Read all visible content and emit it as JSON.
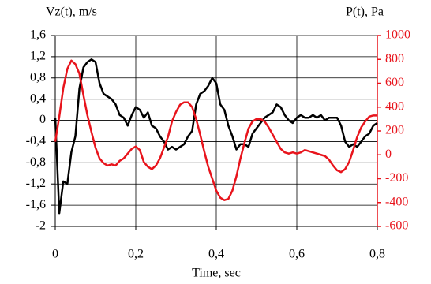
{
  "chart_data": {
    "type": "line",
    "ylabel": "Vz(t), m/s",
    "y2label": "P(t), Pa",
    "xlabel": "Time, sec",
    "grid": true,
    "xlim": [
      0,
      0.8
    ],
    "xticks": [
      0,
      {
        "value": 0.2,
        "label": "0,2"
      },
      {
        "value": 0.4,
        "label": "0,4"
      },
      {
        "value": 0.6,
        "label": "0,6"
      },
      {
        "value": 0.8,
        "label": "0,8"
      }
    ],
    "ylim": [
      -2,
      1.6
    ],
    "yticks": [
      {
        "value": 1.6,
        "label": "1,6"
      },
      {
        "value": 1.2,
        "label": "1,2"
      },
      {
        "value": 0.8,
        "label": "0,8"
      },
      {
        "value": 0.4,
        "label": "0,4"
      },
      0,
      {
        "value": -0.4,
        "label": "-0,4"
      },
      {
        "value": -0.8,
        "label": "-0,8"
      },
      {
        "value": -1.2,
        "label": "-1,2"
      },
      {
        "value": -1.6,
        "label": "-1,6"
      },
      -2
    ],
    "y2lim": [
      -600,
      1000
    ],
    "y2ticks": [
      1000,
      800,
      600,
      400,
      200,
      0,
      -200,
      -400,
      -600
    ],
    "y2color": "#e8141c",
    "x": [
      0,
      0.01,
      0.02,
      0.03,
      0.04,
      0.05,
      0.06,
      0.07,
      0.08,
      0.09,
      0.1,
      0.11,
      0.12,
      0.13,
      0.14,
      0.15,
      0.16,
      0.17,
      0.18,
      0.19,
      0.2,
      0.21,
      0.22,
      0.23,
      0.24,
      0.25,
      0.26,
      0.27,
      0.28,
      0.29,
      0.3,
      0.31,
      0.32,
      0.33,
      0.34,
      0.35,
      0.36,
      0.37,
      0.38,
      0.39,
      0.4,
      0.41,
      0.42,
      0.43,
      0.44,
      0.45,
      0.46,
      0.47,
      0.48,
      0.49,
      0.5,
      0.51,
      0.52,
      0.53,
      0.54,
      0.55,
      0.56,
      0.57,
      0.58,
      0.59,
      0.6,
      0.61,
      0.62,
      0.63,
      0.64,
      0.65,
      0.66,
      0.67,
      0.68,
      0.69,
      0.7,
      0.71,
      0.72,
      0.73,
      0.74,
      0.75,
      0.76,
      0.77,
      0.78,
      0.79,
      0.8
    ],
    "series": [
      {
        "color": "#000000",
        "values": [
          0.05,
          -1.75,
          -1.15,
          -1.2,
          -0.6,
          -0.3,
          0.6,
          1.0,
          1.1,
          1.15,
          1.1,
          0.7,
          0.5,
          0.45,
          0.4,
          0.3,
          0.1,
          0.05,
          -0.1,
          0.1,
          0.25,
          0.2,
          0.05,
          0.15,
          -0.1,
          -0.15,
          -0.3,
          -0.4,
          -0.55,
          -0.5,
          -0.55,
          -0.5,
          -0.45,
          -0.3,
          -0.2,
          0.3,
          0.5,
          0.55,
          0.65,
          0.8,
          0.7,
          0.3,
          0.2,
          -0.1,
          -0.3,
          -0.55,
          -0.45,
          -0.45,
          -0.5,
          -0.25,
          -0.15,
          -0.05,
          0.05,
          0.1,
          0.15,
          0.3,
          0.25,
          0.1,
          0,
          -0.05,
          0.05,
          0.1,
          0.05,
          0.05,
          0.1,
          0.05,
          0.1,
          0,
          0.05,
          0.05,
          0.05,
          -0.1,
          -0.4,
          -0.5,
          -0.45,
          -0.5,
          -0.4,
          -0.3,
          -0.25,
          -0.1,
          -0.05
        ]
      },
      {
        "color": "#e8141c",
        "axis": "y2",
        "values": [
          110,
          320,
          560,
          720,
          790,
          760,
          680,
          500,
          330,
          190,
          60,
          -30,
          -70,
          -90,
          -80,
          -90,
          -50,
          -30,
          10,
          50,
          70,
          40,
          -60,
          -100,
          -120,
          -90,
          -30,
          60,
          150,
          280,
          360,
          420,
          440,
          440,
          400,
          300,
          170,
          30,
          -100,
          -200,
          -300,
          -360,
          -380,
          -370,
          -300,
          -180,
          -30,
          100,
          220,
          280,
          300,
          300,
          280,
          230,
          170,
          110,
          50,
          20,
          10,
          20,
          10,
          20,
          40,
          30,
          20,
          10,
          0,
          -10,
          -40,
          -90,
          -130,
          -145,
          -120,
          -60,
          40,
          150,
          230,
          280,
          320,
          330,
          330
        ]
      }
    ]
  }
}
